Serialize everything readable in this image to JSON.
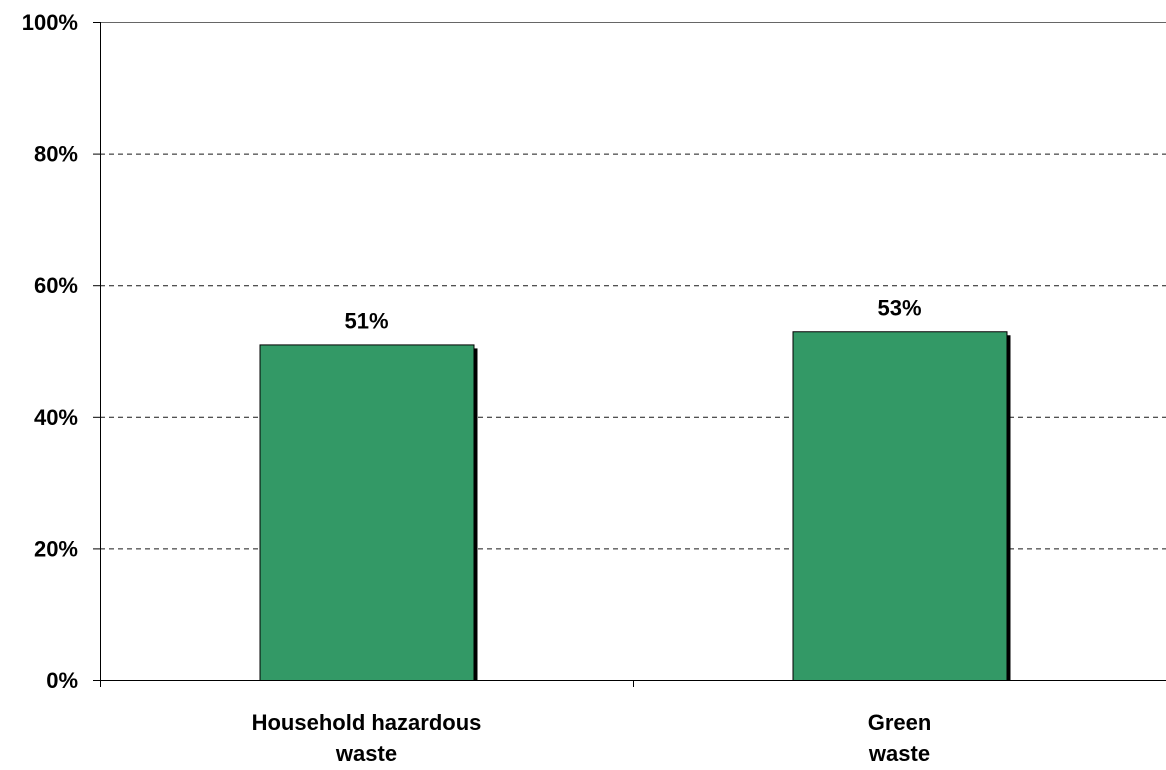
{
  "chart_data": {
    "type": "bar",
    "categories": [
      [
        "Household hazardous",
        "waste"
      ],
      [
        "Green",
        "waste"
      ]
    ],
    "values": [
      51,
      53
    ],
    "data_labels": [
      "51%",
      "53%"
    ],
    "ylim": [
      0,
      100
    ],
    "yticks": [
      0,
      20,
      40,
      60,
      80,
      100
    ],
    "ytick_labels": [
      "0%",
      "20%",
      "40%",
      "60%",
      "80%",
      "100%"
    ],
    "grid": "horizontal dashed",
    "legend": "none",
    "colors": {
      "bar_fill": "#339966",
      "bar_stroke": "#000000",
      "bar_shadow": "#000000",
      "axis": "#000000",
      "grid": "#000000"
    }
  }
}
